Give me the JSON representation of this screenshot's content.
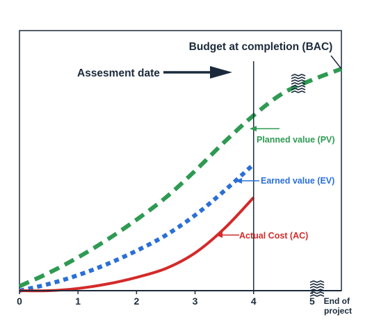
{
  "chart_data": {
    "type": "line",
    "title": "",
    "xlabel": "",
    "ylabel": "",
    "xlim": [
      0,
      5.5
    ],
    "x_ticks": [
      "0",
      "1",
      "2",
      "3",
      "4",
      "5"
    ],
    "x_end_label": [
      "End of",
      "project"
    ],
    "assessment_x": 4,
    "grid": false,
    "series": [
      {
        "name": "Planned value (PV)",
        "color": "#2e9a52",
        "style": "dashed",
        "x": [
          0,
          0.5,
          1,
          1.5,
          2,
          2.5,
          3,
          3.5,
          4,
          4.5,
          5,
          5.5
        ],
        "y": [
          0.02,
          0.08,
          0.15,
          0.23,
          0.32,
          0.42,
          0.54,
          0.67,
          0.79,
          0.89,
          0.95,
          1.0
        ]
      },
      {
        "name": "Earned value (EV)",
        "color": "#2a6fd6",
        "style": "dotted",
        "x": [
          0,
          0.5,
          1,
          1.5,
          2,
          2.5,
          3,
          3.5,
          4
        ],
        "y": [
          0.0,
          0.03,
          0.07,
          0.12,
          0.18,
          0.25,
          0.34,
          0.45,
          0.57
        ]
      },
      {
        "name": "Actual Cost (AC)",
        "color": "#d42a2a",
        "style": "solid",
        "x": [
          0,
          0.5,
          1,
          1.5,
          2,
          2.5,
          3,
          3.5,
          4
        ],
        "y": [
          0.0,
          0.0,
          0.01,
          0.03,
          0.06,
          0.1,
          0.17,
          0.28,
          0.42
        ]
      }
    ],
    "annotations": {
      "bac": "Budget at completion (BAC)",
      "assessment": "Assesment date",
      "pv": "Planned value (PV)",
      "ev": "Earned value (EV)",
      "ac": "Actual Cost (AC)"
    },
    "colors": {
      "axis": "#1b2a3a",
      "text": "#1b2a3a",
      "pv": "#2e9a52",
      "ev": "#2a6fd6",
      "ac": "#d42a2a"
    }
  }
}
